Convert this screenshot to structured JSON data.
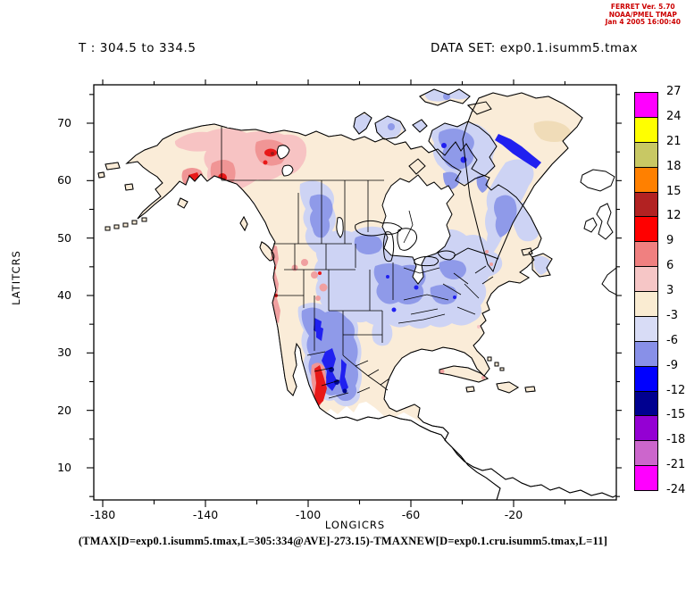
{
  "header": {
    "line1": "FERRET Ver. 5.70",
    "line2": "NOAA/PMEL TMAP",
    "line3": "Jan  4 2005 16:00:40",
    "color": "#CC0000"
  },
  "titles": {
    "left": "T : 304.5 to 334.5",
    "right": "DATA SET: exp0.1.isumm5.tmax"
  },
  "caption": "(TMAX[D=exp0.1.isumm5.tmax,L=305:334@AVE]-273.15)-TMAXNEW[D=exp0.1.cru.isumm5.tmax,L=11]",
  "axes": {
    "x": {
      "label": "LONGICRS",
      "major_ticks": [
        -180,
        -140,
        -100,
        -60,
        -20
      ],
      "minor_ticks": [
        -160,
        -120,
        -80,
        -40,
        0
      ],
      "range": [
        -183.5,
        20
      ]
    },
    "y": {
      "label": "LATITCRS",
      "major_ticks": [
        10,
        20,
        30,
        40,
        50,
        60,
        70
      ],
      "minor_ticks": [
        5,
        15,
        25,
        35,
        45,
        55,
        65,
        75
      ],
      "range": [
        4.4,
        76.7
      ]
    }
  },
  "colorbar": {
    "boundary_labels": [
      27,
      24,
      21,
      18,
      15,
      12,
      9,
      6,
      3,
      -3,
      -6,
      -9,
      -12,
      -15,
      -18,
      -21,
      -24
    ],
    "band_colors_top_to_bottom": [
      "#FF00FF",
      "#FFFF00",
      "#C8C864",
      "#FF8000",
      "#B22222",
      "#FF0000",
      "#F08080",
      "#F6C6C6",
      "#FAECD2",
      "#D8DCF6",
      "#8890E8",
      "#0000FF",
      "#000090",
      "#9400D3",
      "#CC66CC",
      "#FF00FF"
    ]
  },
  "map_colors": {
    "ocean": "#FFFFFF",
    "land_no_data": "#FFFFFF",
    "near_zero_cream": "#FAECD8",
    "light_blue": "#CDD3F4",
    "medium_blue": "#8F9AE9",
    "bright_blue": "#2020F0",
    "navy": "#000890",
    "light_pink": "#F7C3C3",
    "medium_pink": "#F09595",
    "red": "#E81818",
    "dark_red": "#A01818",
    "tan_patch": "#F0DCB8",
    "outline": "#000000"
  },
  "chart_data": {
    "type": "heatmap",
    "subtype": "filled-contour-map",
    "title": "T : 304.5 to 334.5",
    "dataset": "exp0.1.isumm5.tmax",
    "variable_expression": "(TMAX[D=exp0.1.isumm5.tmax,L=305:334@AVE]-273.15)-TMAXNEW[D=exp0.1.cru.isumm5.tmax,L=11]",
    "xlabel": "LONGICRS",
    "ylabel": "LATITCRS",
    "x_range": [
      -183.5,
      20
    ],
    "y_range": [
      4.4,
      76.7
    ],
    "contour_levels": [
      -24,
      -21,
      -18,
      -15,
      -12,
      -9,
      -6,
      -3,
      3,
      6,
      9,
      12,
      15,
      18,
      21,
      24,
      27
    ],
    "legend_position": "right",
    "grid": false,
    "features": [
      {
        "region": "Yukon / western Northwest Territories",
        "anomaly": "+3 to +12 (warm, pink/red cores)"
      },
      {
        "region": "Alaska interior",
        "anomaly": "+3 to +6 (pink)"
      },
      {
        "region": "Anchorage / Gulf of Alaska coast",
        "anomaly": "+9 to +12 (red spot)"
      },
      {
        "region": "Most of Canada and Alaska",
        "anomaly": "-3 to +3 (cream)"
      },
      {
        "region": "Saskatchewan-Manitoba band",
        "anomaly": "-6 to -9 (blue band)"
      },
      {
        "region": "Canadian Arctic islands / Baffin Island",
        "anomaly": "-3 to -12 (blue patches)"
      },
      {
        "region": "Eastern / central United States",
        "anomaly": "-3 to -9 (light-medium blue)"
      },
      {
        "region": "Pacific Northwest coast and Rockies",
        "anomaly": "+3 to +9 (pink streaks)"
      },
      {
        "region": "New Mexico / Texas / Chihuahua highlands",
        "anomaly": "-6 to -15 (dark blue cores)"
      },
      {
        "region": "Sinaloa coastal strip (west Mexico)",
        "anomaly": "+9 to +12 (red stripe)"
      },
      {
        "region": "Southern Greenland",
        "anomaly": "-3 to -12, strong blue stripe on SE coast"
      },
      {
        "region": "Labrador / Newfoundland / Quebec south",
        "anomaly": "-3 to -6 (light blue)"
      },
      {
        "region": "South of ~18N (Central America, Caribbean edge)",
        "anomaly": "no data (white, outlines only)"
      }
    ]
  }
}
